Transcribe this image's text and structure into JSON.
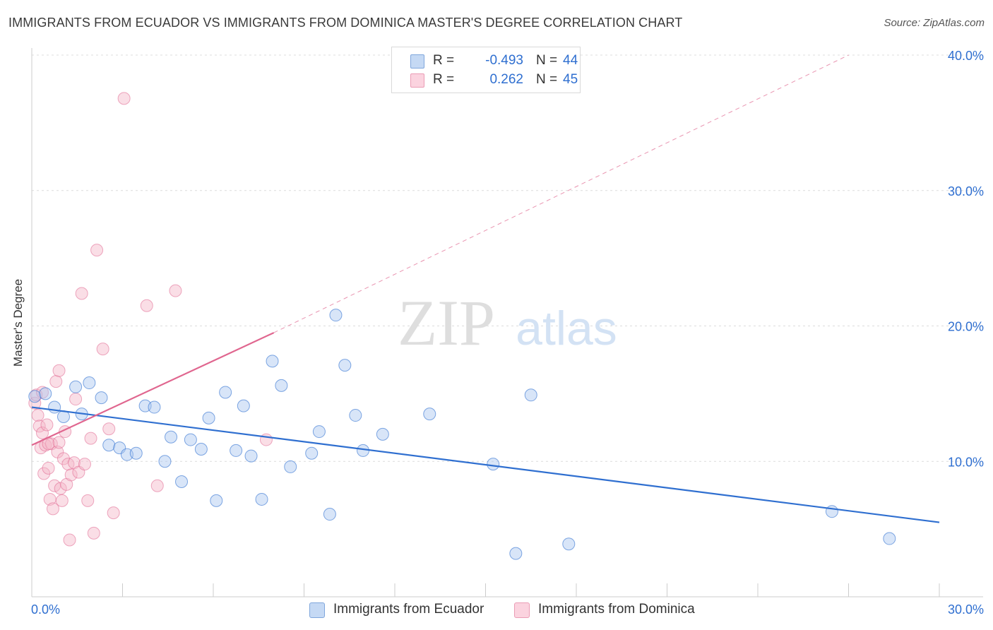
{
  "header": {
    "title": "IMMIGRANTS FROM ECUADOR VS IMMIGRANTS FROM DOMINICA MASTER'S DEGREE CORRELATION CHART",
    "source": "Source: ZipAtlas.com"
  },
  "watermark": {
    "zip": "ZIP",
    "atlas": "atlas"
  },
  "legend": {
    "rows": [
      {
        "r_label": "R =",
        "r_value": "-0.493",
        "n_label": "N =",
        "n_value": "44",
        "color": "#a9c6ef"
      },
      {
        "r_label": "R =",
        "r_value": " 0.262",
        "n_label": "N =",
        "n_value": "45",
        "color": "#f4b6c8"
      }
    ]
  },
  "bottom_legend": {
    "ecuador": "Immigrants from Ecuador",
    "dominica": "Immigrants from Dominica"
  },
  "chart_data": {
    "type": "scatter",
    "title": "IMMIGRANTS FROM ECUADOR VS IMMIGRANTS FROM DOMINICA MASTER'S DEGREE CORRELATION CHART",
    "xlabel": "",
    "ylabel": "Master's Degree",
    "xlim": [
      0,
      30
    ],
    "ylim": [
      0,
      40
    ],
    "x_tick_labels": [
      "0.0%",
      "30.0%"
    ],
    "y_tick_labels": [
      "10.0%",
      "20.0%",
      "30.0%",
      "40.0%"
    ],
    "y_ticks": [
      10,
      20,
      30,
      40
    ],
    "grid": true,
    "legend_position": "top-center",
    "colors": {
      "ecuador": "#2f6fd0",
      "ecuador_fill": "#a9c6ef",
      "dominica": "#e0668f",
      "dominica_fill": "#f4b6c8"
    },
    "series": [
      {
        "name": "Immigrants from Ecuador",
        "points": [
          [
            0.1,
            14.8
          ],
          [
            0.45,
            15.0
          ],
          [
            0.75,
            14.0
          ],
          [
            1.05,
            13.3
          ],
          [
            1.45,
            15.5
          ],
          [
            1.65,
            13.5
          ],
          [
            1.9,
            15.8
          ],
          [
            2.3,
            14.7
          ],
          [
            2.55,
            11.2
          ],
          [
            2.9,
            11.0
          ],
          [
            3.15,
            10.5
          ],
          [
            3.45,
            10.6
          ],
          [
            3.75,
            14.1
          ],
          [
            4.05,
            14.0
          ],
          [
            4.4,
            10.0
          ],
          [
            4.6,
            11.8
          ],
          [
            4.95,
            8.5
          ],
          [
            5.25,
            11.6
          ],
          [
            5.6,
            10.9
          ],
          [
            5.85,
            13.2
          ],
          [
            6.1,
            7.1
          ],
          [
            6.4,
            15.1
          ],
          [
            6.75,
            10.8
          ],
          [
            7.0,
            14.1
          ],
          [
            7.25,
            10.4
          ],
          [
            7.6,
            7.2
          ],
          [
            7.95,
            17.4
          ],
          [
            8.25,
            15.6
          ],
          [
            8.55,
            9.6
          ],
          [
            9.25,
            10.6
          ],
          [
            9.5,
            12.2
          ],
          [
            9.85,
            6.1
          ],
          [
            10.05,
            20.8
          ],
          [
            10.35,
            17.1
          ],
          [
            10.7,
            13.4
          ],
          [
            10.95,
            10.8
          ],
          [
            11.6,
            12.0
          ],
          [
            13.15,
            13.5
          ],
          [
            15.25,
            9.8
          ],
          [
            16.0,
            3.2
          ],
          [
            16.5,
            14.9
          ],
          [
            17.75,
            3.9
          ],
          [
            26.45,
            6.3
          ],
          [
            28.35,
            4.3
          ]
        ]
      },
      {
        "name": "Immigrants from Dominica",
        "points": [
          [
            0.1,
            14.3
          ],
          [
            0.15,
            14.9
          ],
          [
            0.2,
            13.4
          ],
          [
            0.25,
            12.6
          ],
          [
            0.3,
            11.0
          ],
          [
            0.35,
            12.1
          ],
          [
            0.4,
            9.1
          ],
          [
            0.45,
            11.2
          ],
          [
            0.5,
            12.7
          ],
          [
            0.55,
            9.5
          ],
          [
            0.6,
            7.2
          ],
          [
            0.65,
            11.3
          ],
          [
            0.7,
            6.5
          ],
          [
            0.75,
            8.2
          ],
          [
            0.8,
            15.9
          ],
          [
            0.85,
            10.7
          ],
          [
            0.9,
            16.7
          ],
          [
            0.95,
            8.0
          ],
          [
            1.0,
            7.1
          ],
          [
            1.05,
            10.2
          ],
          [
            1.1,
            12.2
          ],
          [
            1.15,
            8.3
          ],
          [
            1.2,
            9.8
          ],
          [
            1.25,
            4.2
          ],
          [
            1.3,
            9.0
          ],
          [
            1.4,
            9.9
          ],
          [
            1.45,
            14.6
          ],
          [
            1.55,
            9.2
          ],
          [
            1.65,
            22.4
          ],
          [
            1.75,
            9.8
          ],
          [
            1.85,
            7.1
          ],
          [
            1.95,
            11.7
          ],
          [
            2.05,
            4.7
          ],
          [
            2.15,
            25.6
          ],
          [
            2.35,
            18.3
          ],
          [
            2.55,
            12.4
          ],
          [
            2.7,
            6.2
          ],
          [
            3.05,
            36.8
          ],
          [
            3.8,
            21.5
          ],
          [
            4.15,
            8.2
          ],
          [
            4.75,
            22.6
          ],
          [
            7.75,
            11.6
          ],
          [
            0.55,
            11.3
          ],
          [
            0.9,
            11.4
          ],
          [
            0.35,
            15.1
          ]
        ]
      }
    ],
    "trend_lines": [
      {
        "series": "Immigrants from Ecuador",
        "x": [
          0,
          30
        ],
        "y": [
          14.0,
          5.5
        ],
        "style": "solid"
      },
      {
        "series": "Immigrants from Dominica",
        "x": [
          0,
          8
        ],
        "y": [
          11.2,
          19.5
        ],
        "style": "solid"
      },
      {
        "series": "Immigrants from Dominica",
        "x": [
          8,
          27
        ],
        "y": [
          19.5,
          40.0
        ],
        "style": "dashed"
      }
    ]
  }
}
